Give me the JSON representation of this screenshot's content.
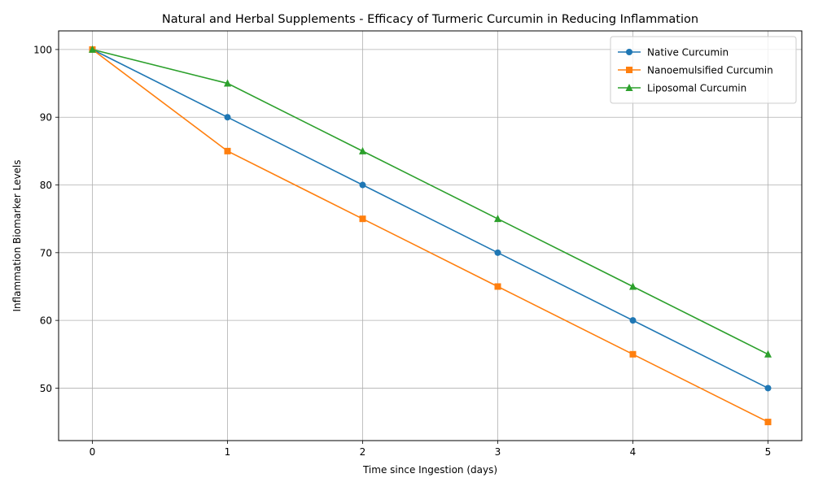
{
  "chart_data": {
    "type": "line",
    "title": "Natural and Herbal Supplements - Efficacy of Turmeric Curcumin in Reducing Inflammation",
    "xlabel": "Time since Ingestion (days)",
    "ylabel": "Inflammation Biomarker Levels",
    "x": [
      0,
      1,
      2,
      3,
      4,
      5
    ],
    "xticks": [
      "0",
      "1",
      "2",
      "3",
      "4",
      "5"
    ],
    "yticks": [
      "50",
      "60",
      "70",
      "80",
      "90",
      "100"
    ],
    "xlim": [
      -0.25,
      5.25
    ],
    "ylim": [
      42.25,
      102.75
    ],
    "grid": true,
    "legend_position": "upper-right",
    "series": [
      {
        "name": "Native Curcumin",
        "values": [
          100,
          90,
          80,
          70,
          60,
          50
        ],
        "color": "#1f77b4",
        "marker": "circle"
      },
      {
        "name": "Nanoemulsified Curcumin",
        "values": [
          100,
          85,
          75,
          65,
          55,
          45
        ],
        "color": "#ff7f0e",
        "marker": "square"
      },
      {
        "name": "Liposomal Curcumin",
        "values": [
          100,
          95,
          85,
          75,
          65,
          55
        ],
        "color": "#2ca02c",
        "marker": "triangle"
      }
    ]
  }
}
